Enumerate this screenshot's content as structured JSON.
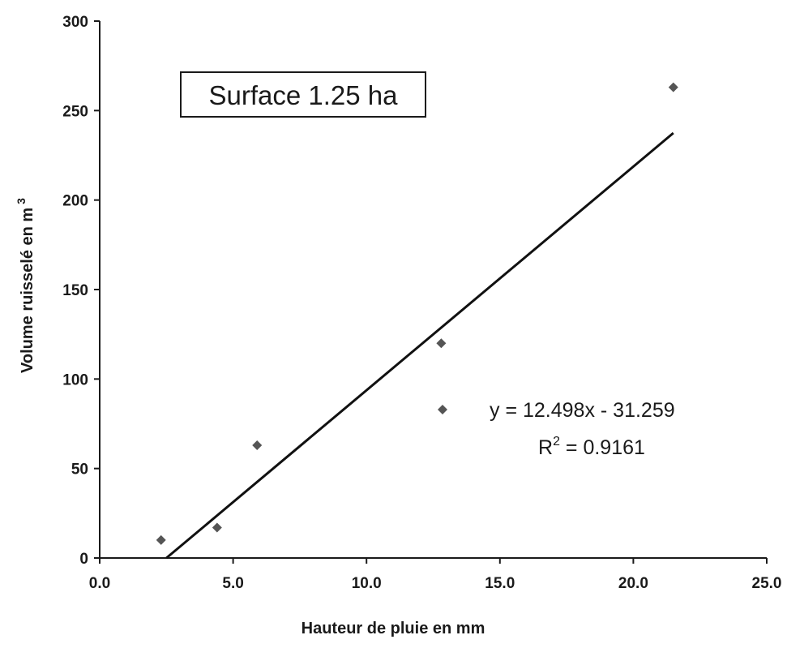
{
  "chart_data": {
    "type": "scatter",
    "title": "",
    "annotation_box": "Surface 1.25 ha",
    "xlabel": "Hauteur de pluie en mm",
    "ylabel": "Volume ruisselé en m",
    "ylabel_superscript": "3",
    "xlim": [
      0,
      25
    ],
    "ylim": [
      0,
      300
    ],
    "x_ticks": [
      "0.0",
      "5.0",
      "10.0",
      "15.0",
      "20.0",
      "25.0"
    ],
    "y_ticks": [
      "0",
      "50",
      "100",
      "150",
      "200",
      "250",
      "300"
    ],
    "grid": false,
    "series": [
      {
        "marker": "diamond",
        "color": "#555555",
        "points": [
          {
            "x": 2.3,
            "y": 10
          },
          {
            "x": 4.4,
            "y": 17
          },
          {
            "x": 5.9,
            "y": 63
          },
          {
            "x": 12.8,
            "y": 120
          },
          {
            "x": 21.5,
            "y": 263
          }
        ]
      }
    ],
    "trendline": {
      "slope": 12.498,
      "intercept": -31.259,
      "x_range": [
        2.5,
        21.5
      ],
      "color": "#111111"
    },
    "legend": {
      "placement": "right-middle",
      "marker": "diamond",
      "equation": "y = 12.498x - 31.259",
      "r2_prefix": "R",
      "r2_superscript": "2",
      "r2_value": " = 0.9161"
    }
  }
}
